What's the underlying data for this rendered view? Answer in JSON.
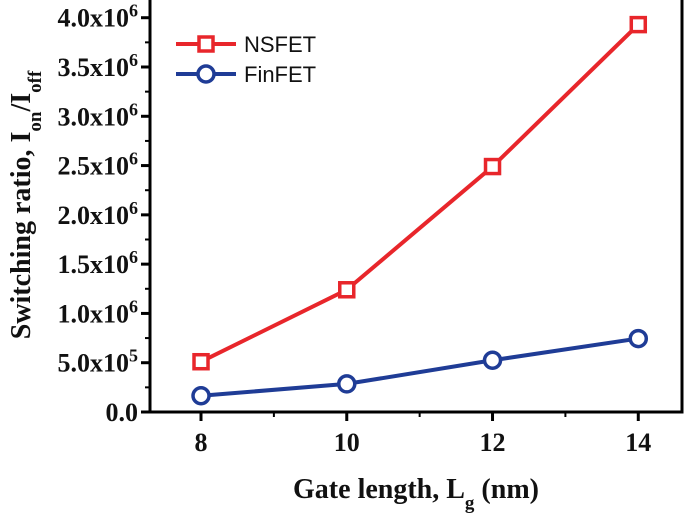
{
  "chart_data": {
    "type": "line",
    "x": [
      8,
      10,
      12,
      14
    ],
    "series": [
      {
        "name": "NSFET",
        "values": [
          510000,
          1240000,
          2490000,
          3930000
        ],
        "color": "#e8262b",
        "marker": "square"
      },
      {
        "name": "FinFET",
        "values": [
          165000,
          285000,
          525000,
          745000
        ],
        "color": "#1f3c96",
        "marker": "circle"
      }
    ],
    "xlim": [
      7.3,
      14.6
    ],
    "ylim": [
      0,
      4200000
    ],
    "x_ticks": [
      8,
      10,
      12,
      14
    ],
    "x_tick_labels": [
      "8",
      "10",
      "12",
      "14"
    ],
    "y_ticks": [
      0,
      500000,
      1000000,
      1500000,
      2000000,
      2500000,
      3000000,
      3500000,
      4000000
    ],
    "y_tick_labels": [
      {
        "mant": "0.0",
        "exp": ""
      },
      {
        "mant": "5.0x10",
        "exp": "5"
      },
      {
        "mant": "1.0x10",
        "exp": "6"
      },
      {
        "mant": "1.5x10",
        "exp": "6"
      },
      {
        "mant": "2.0x10",
        "exp": "6"
      },
      {
        "mant": "2.5x10",
        "exp": "6"
      },
      {
        "mant": "3.0x10",
        "exp": "6"
      },
      {
        "mant": "3.5x10",
        "exp": "6"
      },
      {
        "mant": "4.0x10",
        "exp": "6"
      }
    ],
    "xlabel": {
      "text": "Gate length, L",
      "sub": "g",
      "suffix": " (nm)"
    },
    "ylabel": {
      "text": "Switching ratio, I",
      "sub1": "on",
      "mid": "/I",
      "sub2": "off"
    },
    "legend_position": "top-left",
    "grid": false
  }
}
